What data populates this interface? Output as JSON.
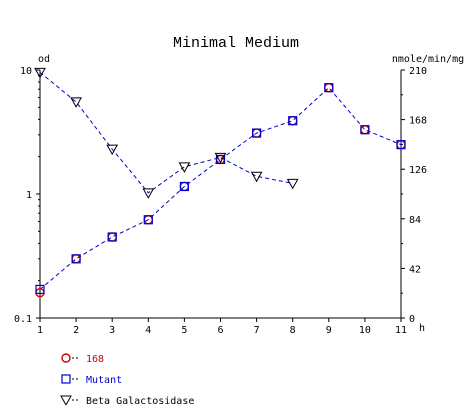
{
  "chart_data": {
    "type": "line",
    "title": "Minimal Medium",
    "x": [
      1,
      2,
      3,
      4,
      5,
      6,
      7,
      8,
      9,
      10,
      11
    ],
    "xlabel": "",
    "x_unit": "h",
    "xlim": [
      1,
      11
    ],
    "left_axis": {
      "label": "od",
      "scale": "log",
      "range": [
        0.1,
        10
      ],
      "ticks": [
        "0.1",
        "1",
        "10"
      ]
    },
    "right_axis": {
      "label": "nmole/min/mg",
      "scale": "linear",
      "range": [
        0,
        210
      ],
      "ticks": [
        "0",
        "42",
        "84",
        "126",
        "168",
        "210"
      ]
    },
    "x_ticks": [
      "1",
      "2",
      "3",
      "4",
      "5",
      "6",
      "7",
      "8",
      "9",
      "10",
      "11"
    ],
    "grid": false,
    "legend_position": "bottom-left",
    "series": [
      {
        "name": "168",
        "axis": "left",
        "marker": "circle",
        "color": "#cc0000",
        "values": [
          0.16,
          0.3,
          0.45,
          0.62,
          1.15,
          1.9,
          3.1,
          3.9,
          7.2,
          3.3,
          2.5
        ]
      },
      {
        "name": "Mutant",
        "axis": "left",
        "marker": "square",
        "color": "#0000cc",
        "values": [
          0.17,
          0.3,
          0.45,
          0.62,
          1.15,
          1.9,
          3.1,
          3.9,
          7.2,
          3.3,
          2.5
        ]
      },
      {
        "name": "Beta Galactosidase",
        "axis": "right",
        "marker": "triangle-down",
        "color": "#000000",
        "values": [
          208,
          183,
          143,
          106,
          128,
          136,
          120,
          114,
          null,
          null,
          null
        ]
      }
    ]
  },
  "colors": {
    "line_blue": "#0000cc",
    "red": "#cc0000",
    "blue": "#0000cc",
    "black": "#000000"
  }
}
